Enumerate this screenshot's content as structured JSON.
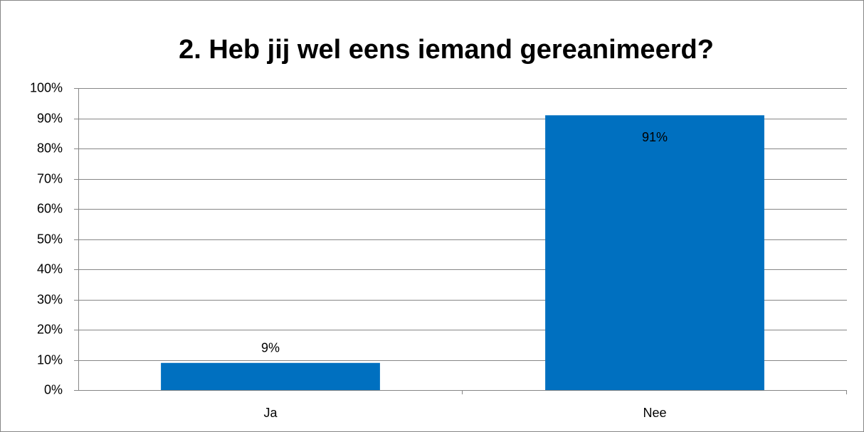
{
  "chart_data": {
    "type": "bar",
    "title": "2. Heb jij wel eens iemand gereanimeerd?",
    "categories": [
      "Ja",
      "Nee"
    ],
    "values": [
      9,
      91
    ],
    "value_labels": [
      "9%",
      "91%"
    ],
    "color": "#0070c0",
    "ylim": [
      0,
      100
    ],
    "yticks": [
      {
        "value": 0,
        "label": "0%"
      },
      {
        "value": 10,
        "label": "10%"
      },
      {
        "value": 20,
        "label": "20%"
      },
      {
        "value": 30,
        "label": "30%"
      },
      {
        "value": 40,
        "label": "40%"
      },
      {
        "value": 50,
        "label": "50%"
      },
      {
        "value": 60,
        "label": "60%"
      },
      {
        "value": 70,
        "label": "70%"
      },
      {
        "value": 80,
        "label": "80%"
      },
      {
        "value": 90,
        "label": "90%"
      },
      {
        "value": 100,
        "label": "100%"
      }
    ],
    "grid": true
  }
}
